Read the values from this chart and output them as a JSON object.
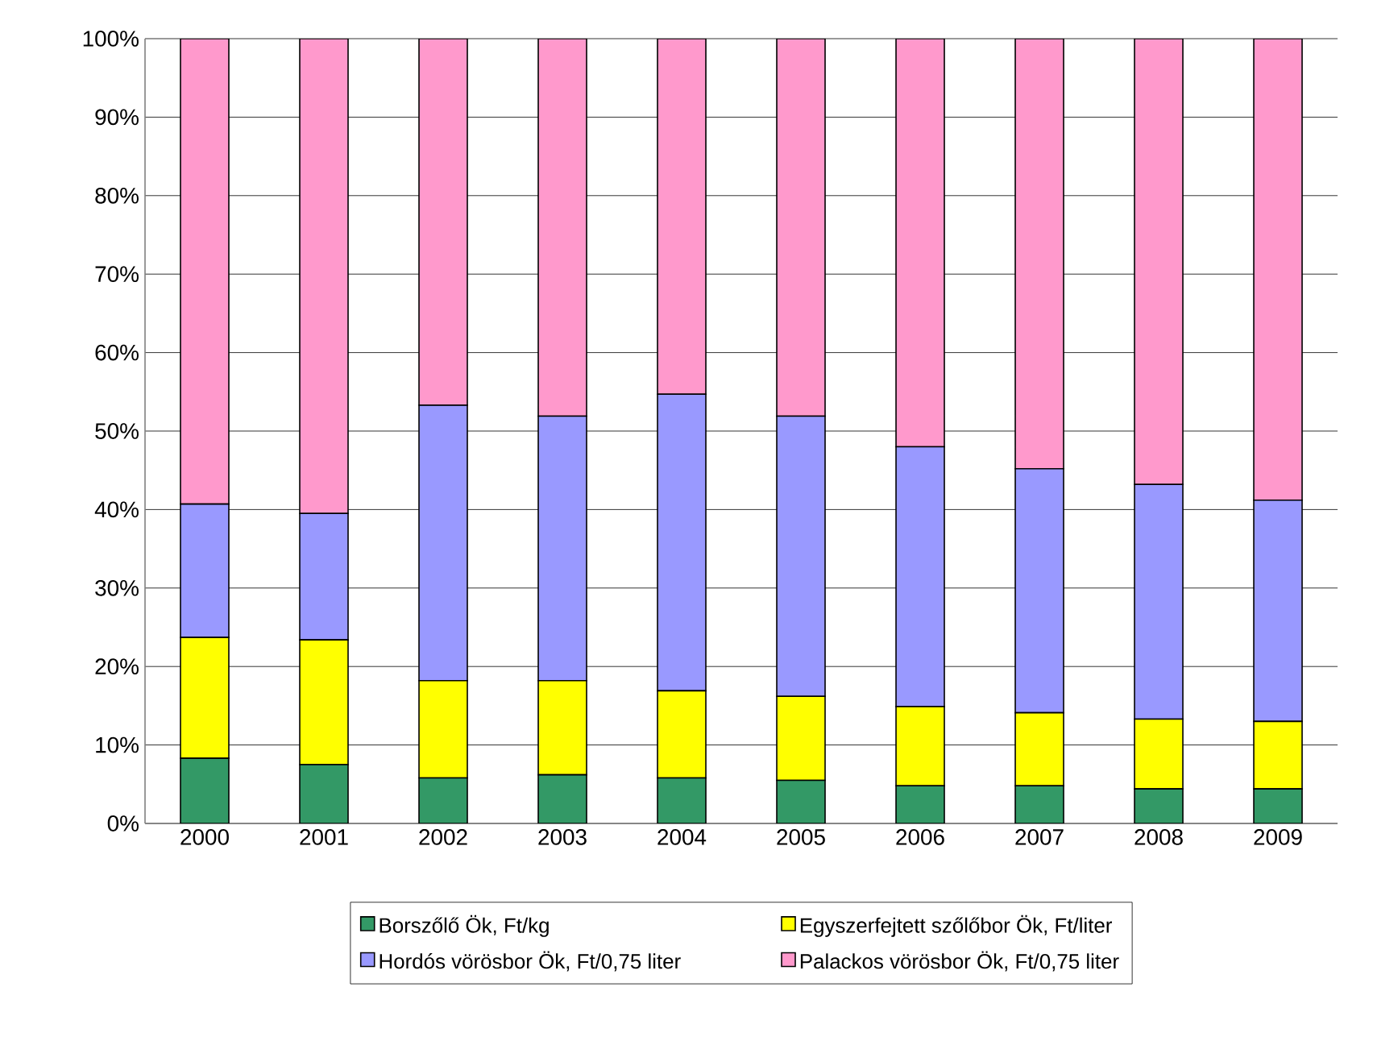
{
  "chart_data": {
    "type": "bar",
    "stacked": true,
    "categories": [
      "2000",
      "2001",
      "2002",
      "2003",
      "2004",
      "2005",
      "2006",
      "2007",
      "2008",
      "2009"
    ],
    "series": [
      {
        "name": "Borszőlő Ök, Ft/kg",
        "color": "#339966",
        "values": [
          8.3,
          7.5,
          5.8,
          6.2,
          5.8,
          5.5,
          4.8,
          4.8,
          4.4,
          4.4
        ]
      },
      {
        "name": "Egyszerfejtett szőlőbor Ök, Ft/liter",
        "color": "#ffff00",
        "values": [
          15.4,
          15.9,
          12.4,
          12.0,
          11.1,
          10.7,
          10.1,
          9.3,
          8.9,
          8.6
        ]
      },
      {
        "name": "Hordós vörösbor Ök, Ft/0,75 liter",
        "color": "#9999ff",
        "values": [
          17.0,
          16.1,
          35.1,
          33.7,
          37.8,
          35.7,
          33.1,
          31.1,
          29.9,
          28.2
        ]
      },
      {
        "name": "Palackos vörösbor Ök, Ft/0,75 liter",
        "color": "#ff99cc",
        "values": [
          59.3,
          60.5,
          46.7,
          48.1,
          45.3,
          48.1,
          52.0,
          54.8,
          56.8,
          58.8
        ]
      }
    ],
    "ylim": [
      0,
      100
    ],
    "yticks": [
      {
        "value": 0,
        "label": "0%"
      },
      {
        "value": 10,
        "label": "10%"
      },
      {
        "value": 20,
        "label": "20%"
      },
      {
        "value": 30,
        "label": "30%"
      },
      {
        "value": 40,
        "label": "40%"
      },
      {
        "value": 50,
        "label": "50%"
      },
      {
        "value": 60,
        "label": "60%"
      },
      {
        "value": 70,
        "label": "70%"
      },
      {
        "value": 80,
        "label": "80%"
      },
      {
        "value": 90,
        "label": "90%"
      },
      {
        "value": 100,
        "label": "100%"
      }
    ],
    "grid": "y",
    "legend": "bottom"
  }
}
